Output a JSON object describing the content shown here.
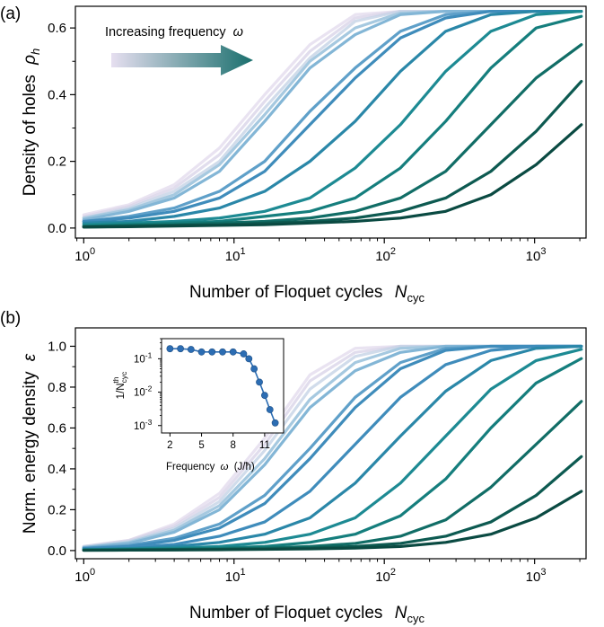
{
  "colors": {
    "ramp": [
      "#e4dced",
      "#d9d4e8",
      "#c6d3e6",
      "#a6c9e0",
      "#83b6d6",
      "#5fa0c9",
      "#3f8cbb",
      "#2a87a8",
      "#1d8a93",
      "#157e7d",
      "#116d66",
      "#0d5a51",
      "#0a4a42"
    ],
    "inset_series": "#2c6db3",
    "arrow_start": "#e6dff0",
    "arrow_end": "#1a6f6d"
  },
  "panel_a": {
    "label": "(a)",
    "xlabel": "Number of Floquet cycles",
    "xlabel_symbol": "N",
    "xlabel_sub": "cyc",
    "ylabel": "Density of holes",
    "ylabel_symbol": "ρ",
    "ylabel_sub": "h",
    "annotation": "Increasing frequency",
    "annotation_symbol": "ω",
    "xticks": [
      {
        "base": "10",
        "exp": "0"
      },
      {
        "base": "10",
        "exp": "1"
      },
      {
        "base": "10",
        "exp": "2"
      },
      {
        "base": "10",
        "exp": "3"
      }
    ],
    "yticks": [
      "0.0",
      "0.2",
      "0.4",
      "0.6"
    ],
    "ytick_values": [
      0.0,
      0.2,
      0.4,
      0.6
    ]
  },
  "panel_b": {
    "label": "(b)",
    "xlabel": "Number of Floquet cycles",
    "xlabel_symbol": "N",
    "xlabel_sub": "cyc",
    "ylabel": "Norm. energy density",
    "ylabel_symbol": "ε",
    "xticks": [
      {
        "base": "10",
        "exp": "0"
      },
      {
        "base": "10",
        "exp": "1"
      },
      {
        "base": "10",
        "exp": "2"
      },
      {
        "base": "10",
        "exp": "3"
      }
    ],
    "yticks": [
      "0.0",
      "0.2",
      "0.4",
      "0.6",
      "0.8",
      "1.0"
    ],
    "ytick_values": [
      0.0,
      0.2,
      0.4,
      0.6,
      0.8,
      1.0
    ]
  },
  "inset": {
    "xlabel": "Frequency",
    "xlabel_symbol": "ω",
    "xlabel_unit": "(J/ħ)",
    "ylabel": "1/N",
    "ylabel_sub": "cyc",
    "ylabel_sup": "th",
    "xticks": [
      "2",
      "5",
      "8",
      "11"
    ],
    "xtick_values": [
      2,
      5,
      8,
      11
    ],
    "yticks": [
      {
        "base": "10",
        "exp": "-1"
      },
      {
        "base": "10",
        "exp": "-2"
      },
      {
        "base": "10",
        "exp": "-3"
      }
    ]
  },
  "chart_data": [
    {
      "type": "line",
      "panel": "a",
      "xlabel": "Number of Floquet cycles N_cyc",
      "ylabel": "Density of holes ρ_h",
      "xscale": "log",
      "xlim": [
        0.88,
        2200
      ],
      "ylim": [
        -0.03,
        0.665
      ],
      "grid": false,
      "x": [
        1,
        2,
        4,
        8,
        16,
        32,
        64,
        128,
        256,
        512,
        1024,
        2048
      ],
      "series": [
        {
          "values": [
            0.04,
            0.07,
            0.13,
            0.24,
            0.4,
            0.55,
            0.64,
            0.65,
            0.65,
            0.65,
            0.65,
            0.65
          ]
        },
        {
          "values": [
            0.035,
            0.065,
            0.12,
            0.22,
            0.38,
            0.53,
            0.63,
            0.65,
            0.65,
            0.65,
            0.65,
            0.65
          ]
        },
        {
          "values": [
            0.03,
            0.06,
            0.11,
            0.2,
            0.36,
            0.51,
            0.62,
            0.65,
            0.65,
            0.65,
            0.65,
            0.65
          ]
        },
        {
          "values": [
            0.03,
            0.055,
            0.1,
            0.19,
            0.34,
            0.5,
            0.6,
            0.645,
            0.65,
            0.65,
            0.65,
            0.65
          ]
        },
        {
          "values": [
            0.025,
            0.05,
            0.09,
            0.17,
            0.32,
            0.48,
            0.58,
            0.64,
            0.65,
            0.65,
            0.65,
            0.65
          ]
        },
        {
          "values": [
            0.02,
            0.035,
            0.06,
            0.11,
            0.2,
            0.35,
            0.48,
            0.59,
            0.64,
            0.65,
            0.65,
            0.65
          ]
        },
        {
          "values": [
            0.02,
            0.03,
            0.05,
            0.09,
            0.17,
            0.31,
            0.45,
            0.57,
            0.63,
            0.65,
            0.65,
            0.65
          ]
        },
        {
          "values": [
            0.015,
            0.02,
            0.035,
            0.06,
            0.11,
            0.2,
            0.32,
            0.47,
            0.59,
            0.64,
            0.65,
            0.65
          ]
        },
        {
          "values": [
            0.01,
            0.015,
            0.02,
            0.03,
            0.05,
            0.09,
            0.18,
            0.31,
            0.47,
            0.59,
            0.64,
            0.65
          ]
        },
        {
          "values": [
            0.005,
            0.01,
            0.015,
            0.02,
            0.035,
            0.05,
            0.09,
            0.18,
            0.32,
            0.48,
            0.6,
            0.635
          ]
        },
        {
          "values": [
            0.005,
            0.008,
            0.01,
            0.015,
            0.02,
            0.03,
            0.05,
            0.09,
            0.17,
            0.31,
            0.45,
            0.55
          ]
        },
        {
          "values": [
            0.003,
            0.005,
            0.008,
            0.01,
            0.015,
            0.02,
            0.03,
            0.05,
            0.09,
            0.17,
            0.29,
            0.44
          ]
        },
        {
          "values": [
            0.003,
            0.004,
            0.006,
            0.008,
            0.01,
            0.015,
            0.02,
            0.03,
            0.05,
            0.1,
            0.19,
            0.31
          ]
        }
      ]
    },
    {
      "type": "line",
      "panel": "b",
      "xlabel": "Number of Floquet cycles N_cyc",
      "ylabel": "Norm. energy density ε",
      "xscale": "log",
      "xlim": [
        0.88,
        2200
      ],
      "ylim": [
        -0.04,
        1.09
      ],
      "grid": false,
      "x": [
        1,
        2,
        4,
        8,
        16,
        32,
        64,
        128,
        256,
        512,
        1024,
        2048
      ],
      "series": [
        {
          "values": [
            0.02,
            0.05,
            0.13,
            0.28,
            0.55,
            0.86,
            0.99,
            1.0,
            1.0,
            1.0,
            1.0,
            1.0
          ]
        },
        {
          "values": [
            0.02,
            0.05,
            0.12,
            0.26,
            0.52,
            0.83,
            0.97,
            1.0,
            1.0,
            1.0,
            1.0,
            1.0
          ]
        },
        {
          "values": [
            0.02,
            0.045,
            0.11,
            0.24,
            0.49,
            0.79,
            0.95,
            1.0,
            1.0,
            1.0,
            1.0,
            1.0
          ]
        },
        {
          "values": [
            0.015,
            0.04,
            0.1,
            0.22,
            0.45,
            0.74,
            0.92,
            0.99,
            1.0,
            1.0,
            1.0,
            1.0
          ]
        },
        {
          "values": [
            0.015,
            0.035,
            0.09,
            0.2,
            0.42,
            0.7,
            0.88,
            0.97,
            1.0,
            1.0,
            1.0,
            1.0
          ]
        },
        {
          "values": [
            0.012,
            0.025,
            0.06,
            0.13,
            0.27,
            0.5,
            0.75,
            0.92,
            0.99,
            1.0,
            1.0,
            1.0
          ]
        },
        {
          "values": [
            0.01,
            0.02,
            0.05,
            0.11,
            0.23,
            0.45,
            0.7,
            0.89,
            0.98,
            1.0,
            1.0,
            1.0
          ]
        },
        {
          "values": [
            0.008,
            0.015,
            0.03,
            0.07,
            0.14,
            0.29,
            0.52,
            0.75,
            0.91,
            0.98,
            1.0,
            1.0
          ]
        },
        {
          "values": [
            0.006,
            0.01,
            0.02,
            0.04,
            0.08,
            0.16,
            0.33,
            0.56,
            0.78,
            0.93,
            0.99,
            1.0
          ]
        },
        {
          "values": [
            0.004,
            0.008,
            0.012,
            0.02,
            0.04,
            0.08,
            0.16,
            0.33,
            0.56,
            0.79,
            0.93,
            0.985
          ]
        },
        {
          "values": [
            0.003,
            0.005,
            0.008,
            0.012,
            0.02,
            0.04,
            0.08,
            0.17,
            0.35,
            0.6,
            0.82,
            0.94
          ]
        },
        {
          "values": [
            0.002,
            0.004,
            0.006,
            0.008,
            0.012,
            0.02,
            0.035,
            0.07,
            0.15,
            0.31,
            0.52,
            0.73
          ]
        },
        {
          "values": [
            0.002,
            0.003,
            0.004,
            0.006,
            0.008,
            0.012,
            0.02,
            0.035,
            0.07,
            0.14,
            0.27,
            0.46
          ]
        },
        {
          "values": [
            0.001,
            0.002,
            0.003,
            0.004,
            0.006,
            0.008,
            0.012,
            0.02,
            0.04,
            0.08,
            0.16,
            0.29
          ]
        }
      ]
    },
    {
      "type": "line",
      "panel": "b-inset",
      "xlabel": "Frequency ω (J/ħ)",
      "ylabel": "1/N_cyc^th",
      "xscale": "linear",
      "yscale": "log",
      "xlim": [
        1.2,
        12.8
      ],
      "ylim": [
        0.0006,
        0.4
      ],
      "markers": "circle",
      "x": [
        2,
        3,
        4,
        5,
        6,
        7,
        8,
        9,
        9.5,
        10,
        10.5,
        11,
        11.5,
        12
      ],
      "values": [
        0.2,
        0.2,
        0.19,
        0.16,
        0.16,
        0.16,
        0.16,
        0.14,
        0.1,
        0.05,
        0.02,
        0.008,
        0.003,
        0.0012
      ]
    }
  ]
}
